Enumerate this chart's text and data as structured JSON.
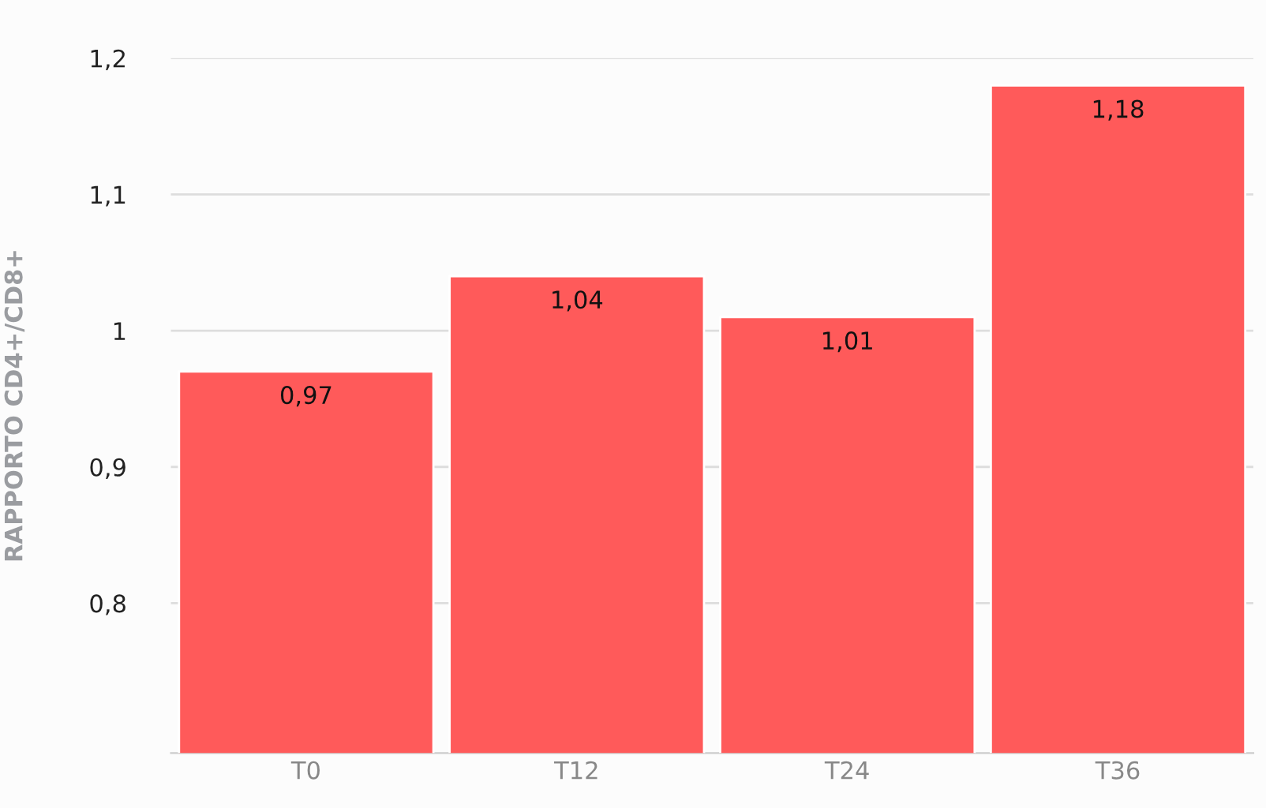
{
  "chart_data": {
    "type": "bar",
    "ylabel": "RAPPORTO CD4+/CD8+",
    "categories": [
      "T0",
      "T12",
      "T24",
      "T36"
    ],
    "values": [
      0.97,
      1.04,
      1.01,
      1.18
    ],
    "value_labels": [
      "0,97",
      "1,04",
      "1,01",
      "1,18"
    ],
    "color": "#ff5a5a",
    "ylim": [
      0.69,
      1.2
    ],
    "yticks": [
      {
        "value": 0.8,
        "label": "0,8"
      },
      {
        "value": 0.9,
        "label": "0,9"
      },
      {
        "value": 1,
        "label": "1"
      },
      {
        "value": 1.1,
        "label": "1,1"
      },
      {
        "value": 1.2,
        "label": "1,2"
      }
    ],
    "grid": "y",
    "legend": false
  }
}
